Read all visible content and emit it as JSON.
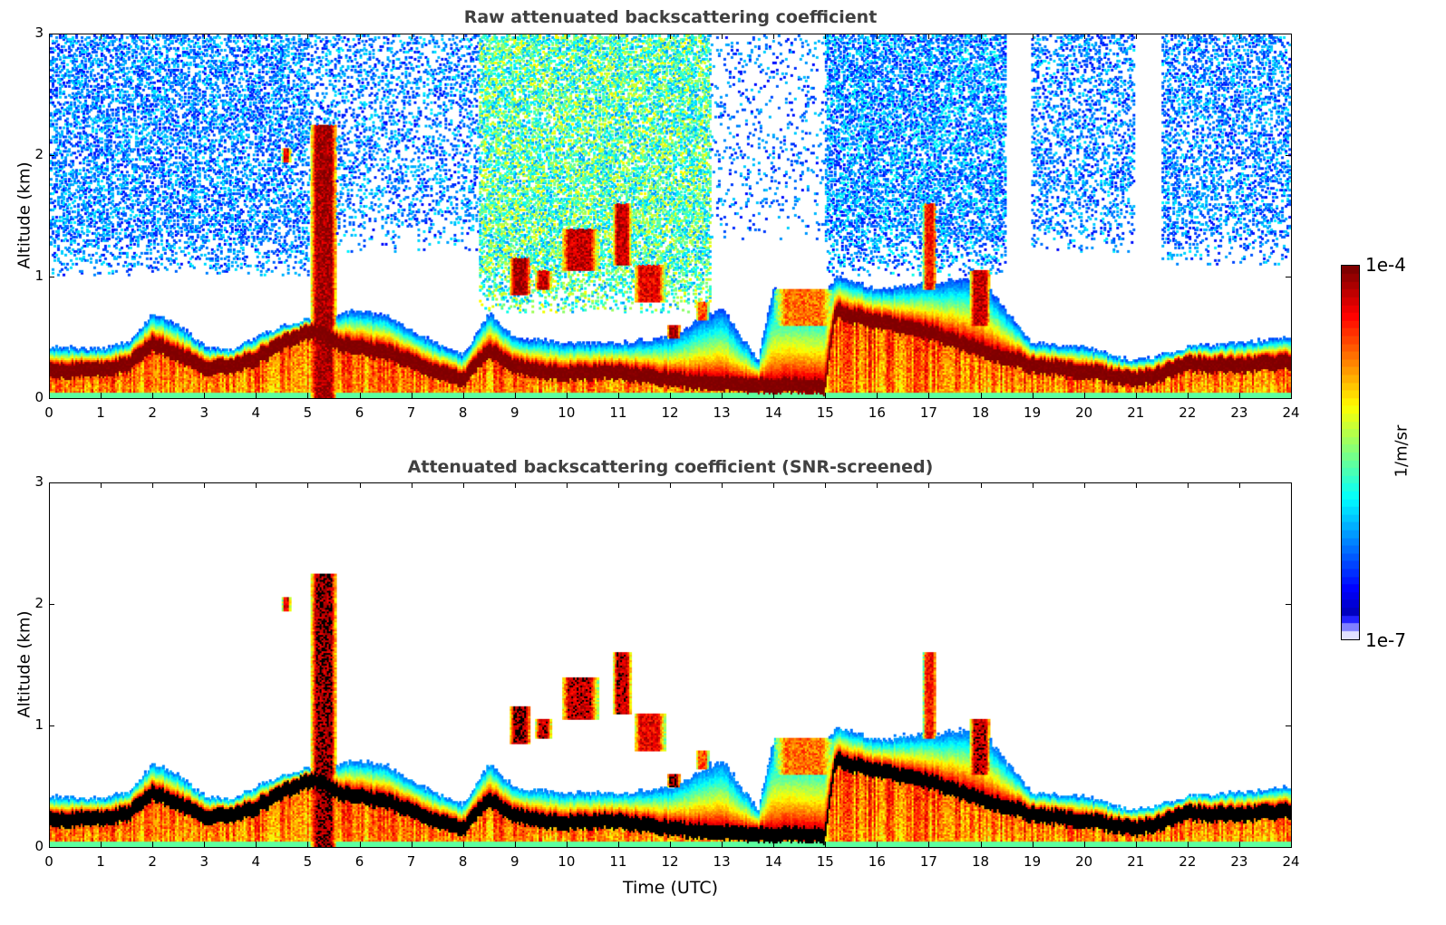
{
  "chart_data": {
    "type": "heatmap",
    "panels": [
      {
        "id": "raw",
        "title": "Raw attenuated backscattering coefficient",
        "ylabel": "Altitude (km)",
        "screened": false
      },
      {
        "id": "snr",
        "title": "Attenuated backscattering coefficient (SNR-screened)",
        "ylabel": "Altitude (km)",
        "screened": true
      }
    ],
    "xlabel": "Time (UTC)",
    "xlim": [
      0,
      24
    ],
    "ylim": [
      0,
      3
    ],
    "xticks": [
      0,
      1,
      2,
      3,
      4,
      5,
      6,
      7,
      8,
      9,
      10,
      11,
      12,
      13,
      14,
      15,
      16,
      17,
      18,
      19,
      20,
      21,
      22,
      23,
      24
    ],
    "yticks": [
      0,
      1,
      2,
      3
    ],
    "colorbar": {
      "label": "1/m/sr",
      "min_label": "1e-7",
      "max_label": "1e-4",
      "log10_range": [
        -7,
        -4
      ],
      "colormap": "jet"
    },
    "layer_center_km": {
      "t": [
        0,
        1,
        1.5,
        2,
        2.5,
        3,
        3.5,
        4,
        4.5,
        5,
        5.2,
        5.6,
        6,
        6.5,
        7,
        7.5,
        8,
        8.5,
        9,
        10,
        11,
        12,
        13,
        14,
        15,
        15.2,
        16,
        17,
        18,
        19,
        20,
        21,
        21.5,
        22,
        23,
        24
      ],
      "z": [
        0.23,
        0.23,
        0.27,
        0.45,
        0.36,
        0.25,
        0.26,
        0.33,
        0.45,
        0.55,
        0.55,
        0.45,
        0.42,
        0.38,
        0.3,
        0.22,
        0.15,
        0.4,
        0.25,
        0.2,
        0.22,
        0.15,
        0.12,
        0.1,
        0.1,
        0.72,
        0.63,
        0.55,
        0.4,
        0.27,
        0.22,
        0.15,
        0.2,
        0.28,
        0.27,
        0.3
      ]
    },
    "layer_top_km": {
      "t": [
        0,
        1,
        1.5,
        2,
        2.5,
        3,
        3.5,
        4,
        4.5,
        5,
        5.6,
        6,
        6.5,
        7,
        7.5,
        8,
        8.5,
        9,
        10,
        11,
        12,
        13,
        13.7,
        14,
        15,
        15.2,
        16,
        17,
        18,
        19,
        20,
        21,
        21.5,
        22,
        23,
        24
      ],
      "z": [
        0.42,
        0.4,
        0.45,
        0.7,
        0.6,
        0.42,
        0.4,
        0.5,
        0.6,
        0.65,
        0.7,
        0.72,
        0.68,
        0.55,
        0.45,
        0.35,
        0.7,
        0.5,
        0.45,
        0.45,
        0.5,
        0.75,
        0.3,
        0.9,
        0.85,
        1.0,
        0.9,
        0.95,
        1.0,
        0.45,
        0.42,
        0.3,
        0.35,
        0.42,
        0.45,
        0.5
      ]
    },
    "cloud_features": [
      {
        "t": [
          5.05,
          5.55
        ],
        "z": [
          0.0,
          2.25
        ],
        "log10": -4.1
      },
      {
        "t": [
          4.5,
          4.65
        ],
        "z": [
          1.95,
          2.05
        ],
        "log10": -4.3
      },
      {
        "t": [
          8.9,
          9.3
        ],
        "z": [
          0.85,
          1.15
        ],
        "log10": -4.1
      },
      {
        "t": [
          9.4,
          9.7
        ],
        "z": [
          0.9,
          1.05
        ],
        "log10": -4.2
      },
      {
        "t": [
          9.9,
          10.6
        ],
        "z": [
          1.05,
          1.4
        ],
        "log10": -4.2
      },
      {
        "t": [
          10.9,
          11.25
        ],
        "z": [
          1.1,
          1.6
        ],
        "log10": -4.2
      },
      {
        "t": [
          11.3,
          11.9
        ],
        "z": [
          0.8,
          1.1
        ],
        "log10": -4.3
      },
      {
        "t": [
          11.95,
          12.2
        ],
        "z": [
          0.5,
          0.6
        ],
        "log10": -4.1
      },
      {
        "t": [
          12.5,
          12.75
        ],
        "z": [
          0.65,
          0.8
        ],
        "log10": -4.6
      },
      {
        "t": [
          14.0,
          15.2
        ],
        "z": [
          0.6,
          0.9
        ],
        "log10": -4.7
      },
      {
        "t": [
          16.9,
          17.15
        ],
        "z": [
          0.9,
          1.6
        ],
        "log10": -4.4
      },
      {
        "t": [
          17.8,
          18.2
        ],
        "z": [
          0.6,
          1.05
        ],
        "log10": -4.2
      }
    ],
    "noise_regions": [
      {
        "t": [
          0,
          5
        ],
        "z_min": 1.0,
        "density": 0.35,
        "log10": [
          -6.6,
          -5.9
        ]
      },
      {
        "t": [
          5,
          8.3
        ],
        "z_min": 1.2,
        "density": 0.2,
        "log10": [
          -6.6,
          -5.9
        ]
      },
      {
        "t": [
          8.3,
          12.8
        ],
        "z_min": 0.7,
        "density": 0.55,
        "log10": [
          -6.2,
          -5.1
        ]
      },
      {
        "t": [
          12.8,
          15
        ],
        "z_min": 1.3,
        "density": 0.08,
        "log10": [
          -6.6,
          -6.0
        ]
      },
      {
        "t": [
          15,
          18.5
        ],
        "z_min": 1.0,
        "density": 0.45,
        "log10": [
          -6.6,
          -5.8
        ]
      },
      {
        "t": [
          19,
          21
        ],
        "z_min": 1.2,
        "density": 0.25,
        "log10": [
          -6.6,
          -5.9
        ]
      },
      {
        "t": [
          21.5,
          24
        ],
        "z_min": 1.1,
        "density": 0.3,
        "log10": [
          -6.6,
          -5.9
        ]
      }
    ]
  }
}
